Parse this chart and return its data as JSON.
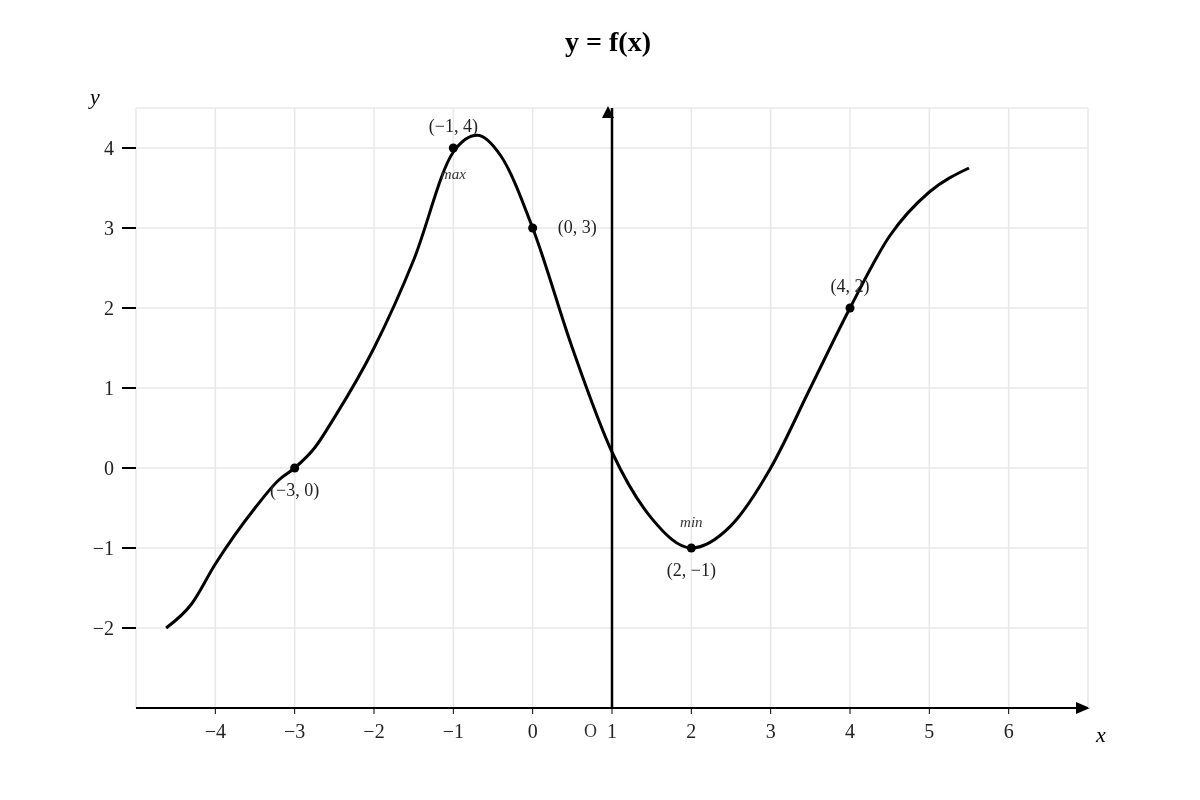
{
  "chart_data": {
    "type": "line",
    "title": "y = f(x)",
    "xlabel": "x",
    "ylabel": "y",
    "xlim": [
      -5,
      7
    ],
    "ylim": [
      -3,
      4.5
    ],
    "xticks": [
      {
        "value": -4,
        "label": "−4"
      },
      {
        "value": -3,
        "label": "−3"
      },
      {
        "value": -2,
        "label": "−2"
      },
      {
        "value": -1,
        "label": "−1"
      },
      0,
      1,
      2,
      3,
      4,
      5,
      6
    ],
    "yticks": [
      {
        "value": -2,
        "label": "−2"
      },
      {
        "value": -1,
        "label": "−1"
      },
      0,
      1,
      2,
      3,
      4
    ],
    "grid": true,
    "legend": false,
    "series": [
      {
        "color": "#000000",
        "marker": "none",
        "line_style": "solid",
        "x": [
          -4.62,
          -4.3,
          -4,
          -3.5,
          -3.2,
          -3,
          -2.75,
          -2.5,
          -2,
          -1.5,
          -1,
          -0.7,
          -0.4,
          0,
          0.5,
          1,
          1.5,
          2,
          2.5,
          3,
          3.5,
          4,
          4.5,
          5,
          5.5
        ],
        "values": [
          -2,
          -1.7,
          -1.2,
          -0.5,
          -0.15,
          0,
          0.25,
          0.63,
          1.5,
          2.6,
          3.95,
          4.16,
          3.9,
          3,
          1.5,
          0.2,
          -0.63,
          -1,
          -0.72,
          0,
          1,
          2,
          2.9,
          3.45,
          3.75
        ]
      },
      {
        "type": "scatter",
        "color": "#000000",
        "marker": "circle",
        "x": [
          -3,
          -1,
          0,
          2,
          4
        ],
        "values": [
          0,
          4,
          3,
          -1,
          2
        ],
        "value_labels": [
          "(−3, 0)",
          "(−1, 4)",
          "(0, 3)",
          "(2, −1)",
          "(4, 2)"
        ]
      }
    ],
    "ref_lines": [
      {
        "axis": "x",
        "value": 1,
        "color": "#000000"
      }
    ],
    "annotations": [
      {
        "text": "max",
        "x": -1,
        "y": 4
      },
      {
        "text": "min",
        "x": 2,
        "y": -1
      },
      "O"
    ]
  }
}
